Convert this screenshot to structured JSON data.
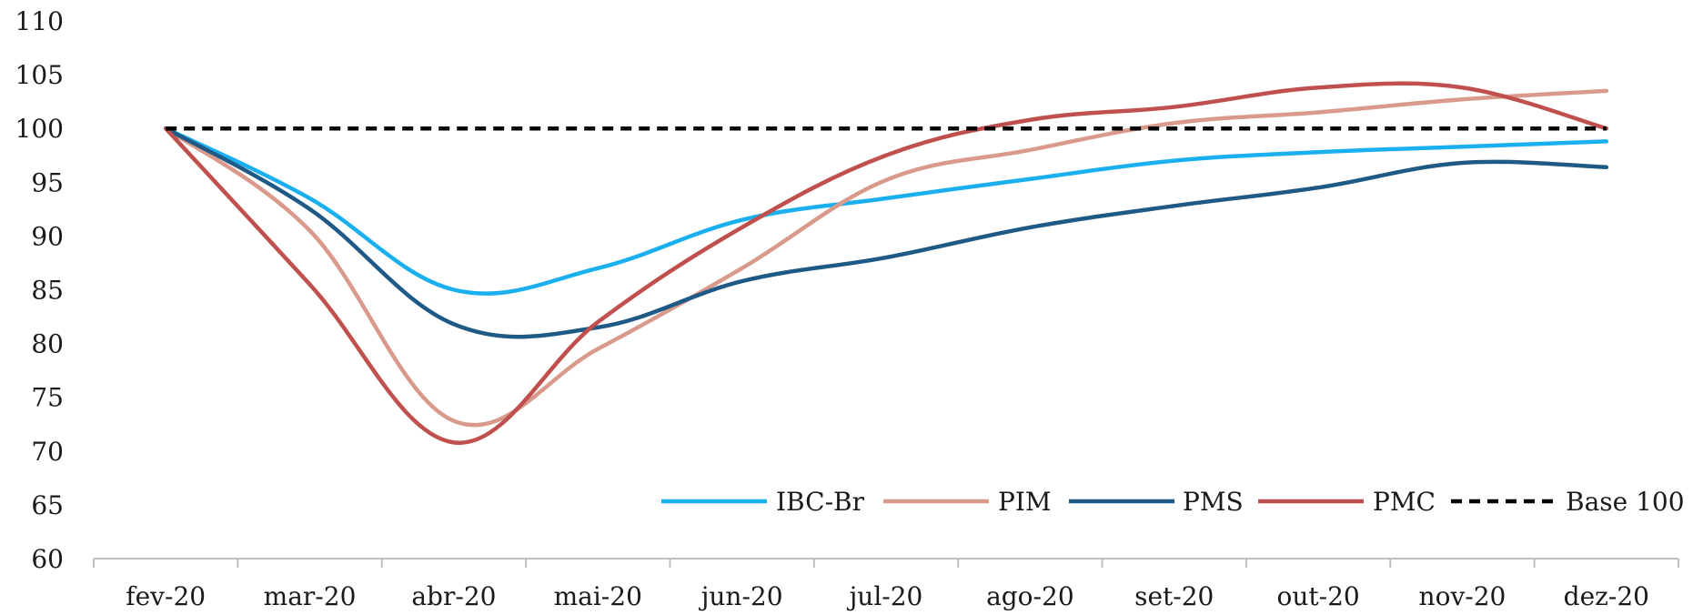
{
  "chart_data": {
    "type": "line",
    "title": "",
    "xlabel": "",
    "ylabel": "",
    "categories": [
      "fev-20",
      "mar-20",
      "abr-20",
      "mai-20",
      "jun-20",
      "jul-20",
      "ago-20",
      "set-20",
      "out-20",
      "nov-20",
      "dez-20"
    ],
    "ylim": [
      60,
      110
    ],
    "yticks": [
      60,
      65,
      70,
      75,
      80,
      85,
      90,
      95,
      100,
      105,
      110
    ],
    "grid": false,
    "legend_position": "bottom-right",
    "series": [
      {
        "name": "IBC-Br",
        "color": "#1ab0f0",
        "style": "solid",
        "values": [
          100,
          93.5,
          85.0,
          87.0,
          91.5,
          93.5,
          95.3,
          97.0,
          97.8,
          98.3,
          98.8
        ]
      },
      {
        "name": "PIM",
        "color": "#d99a8c",
        "style": "solid",
        "values": [
          100,
          90.5,
          72.8,
          79.5,
          87.0,
          95.2,
          98.0,
          100.5,
          101.5,
          102.7,
          103.5
        ]
      },
      {
        "name": "PMS",
        "color": "#1f5a86",
        "style": "solid",
        "values": [
          100,
          92.5,
          81.8,
          81.5,
          85.8,
          88.0,
          90.8,
          92.8,
          94.5,
          96.8,
          96.4
        ]
      },
      {
        "name": "PMC",
        "color": "#c0504d",
        "style": "solid",
        "values": [
          100,
          85.5,
          70.8,
          82.0,
          90.8,
          97.5,
          100.8,
          102.0,
          103.8,
          103.8,
          100.0
        ]
      },
      {
        "name": "Base 100",
        "color": "#000000",
        "style": "dashed",
        "values": [
          100,
          100,
          100,
          100,
          100,
          100,
          100,
          100,
          100,
          100,
          100
        ]
      }
    ]
  }
}
